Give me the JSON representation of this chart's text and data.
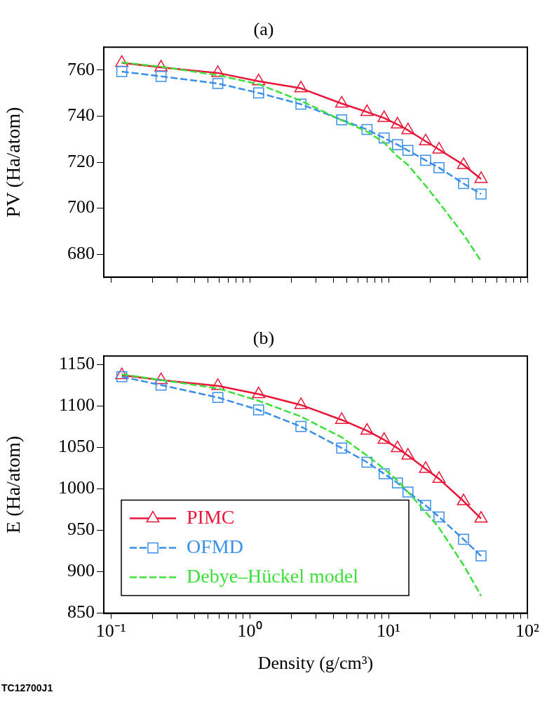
{
  "chart_data": [
    {
      "type": "line",
      "title": "(a)",
      "ylabel": "PV (Ha/atom)",
      "log": "x",
      "grid": false,
      "legend": false,
      "tick_labels": "y",
      "xlim": [
        0.089,
        100
      ],
      "xticks": [
        {
          "value": 0.1,
          "label": null
        },
        {
          "value": 0.2,
          "label": null
        },
        {
          "value": 0.3,
          "label": null
        },
        {
          "value": 0.4,
          "label": null
        },
        {
          "value": 0.5,
          "label": null
        },
        {
          "value": 0.6,
          "label": null
        },
        {
          "value": 0.7,
          "label": null
        },
        {
          "value": 0.8,
          "label": null
        },
        {
          "value": 0.9,
          "label": null
        },
        {
          "value": 1,
          "label": null
        },
        {
          "value": 2,
          "label": null
        },
        {
          "value": 3,
          "label": null
        },
        {
          "value": 4,
          "label": null
        },
        {
          "value": 5,
          "label": null
        },
        {
          "value": 6,
          "label": null
        },
        {
          "value": 7,
          "label": null
        },
        {
          "value": 8,
          "label": null
        },
        {
          "value": 9,
          "label": null
        },
        {
          "value": 10,
          "label": null
        },
        {
          "value": 20,
          "label": null
        },
        {
          "value": 30,
          "label": null
        },
        {
          "value": 40,
          "label": null
        },
        {
          "value": 50,
          "label": null
        },
        {
          "value": 60,
          "label": null
        },
        {
          "value": 70,
          "label": null
        },
        {
          "value": 80,
          "label": null
        },
        {
          "value": 90,
          "label": null
        },
        {
          "value": 100,
          "label": null
        }
      ],
      "ylim": [
        670,
        770
      ],
      "yticks": [
        680,
        700,
        720,
        740,
        760
      ],
      "x": [
        0.12,
        0.23,
        0.59,
        1.16,
        2.34,
        4.6,
        7.0,
        9.3,
        11.6,
        13.8,
        18.5,
        23.1,
        34.7,
        46.4
      ],
      "series": [
        {
          "color": "#e8173a",
          "marker": "triangle",
          "line_style": "solid",
          "values": [
            763.2,
            761.2,
            758.8,
            755.2,
            752.1,
            745.5,
            741.8,
            739.2,
            736.4,
            733.9,
            729.1,
            725.5,
            718.8,
            712.7
          ]
        },
        {
          "color": "#3a8fe8",
          "marker": "square",
          "line_style": "dashed",
          "values": [
            759.4,
            757.3,
            754.2,
            750.1,
            745.2,
            738.4,
            734.2,
            730.5,
            727.6,
            725.1,
            720.8,
            717.6,
            710.7,
            706.1
          ]
        },
        {
          "color": "#3de03a",
          "marker": "none",
          "line_style": "dashed",
          "values": [
            763.4,
            761.5,
            757.8,
            753.9,
            746.7,
            738.2,
            733.3,
            728.5,
            722.5,
            718.8,
            709.7,
            702.4,
            688.5,
            677
          ]
        }
      ]
    },
    {
      "type": "line",
      "title": "(b)",
      "xlabel": "Density (g/cm³)",
      "ylabel": "E (Ha/atom)",
      "log": "x",
      "grid": false,
      "legend": "bottom left",
      "annotations": [
        "TC12700J1"
      ],
      "xlim": [
        0.089,
        100
      ],
      "xticks": [
        {
          "value": 0.1,
          "label": "10⁻¹"
        },
        {
          "value": 0.2,
          "label": null
        },
        {
          "value": 0.3,
          "label": null
        },
        {
          "value": 0.4,
          "label": null
        },
        {
          "value": 0.5,
          "label": null
        },
        {
          "value": 0.6,
          "label": null
        },
        {
          "value": 0.7,
          "label": null
        },
        {
          "value": 0.8,
          "label": null
        },
        {
          "value": 0.9,
          "label": null
        },
        {
          "value": 1,
          "label": "10⁰"
        },
        {
          "value": 2,
          "label": null
        },
        {
          "value": 3,
          "label": null
        },
        {
          "value": 4,
          "label": null
        },
        {
          "value": 5,
          "label": null
        },
        {
          "value": 6,
          "label": null
        },
        {
          "value": 7,
          "label": null
        },
        {
          "value": 8,
          "label": null
        },
        {
          "value": 9,
          "label": null
        },
        {
          "value": 10,
          "label": "10¹"
        },
        {
          "value": 20,
          "label": null
        },
        {
          "value": 30,
          "label": null
        },
        {
          "value": 40,
          "label": null
        },
        {
          "value": 50,
          "label": null
        },
        {
          "value": 60,
          "label": null
        },
        {
          "value": 70,
          "label": null
        },
        {
          "value": 80,
          "label": null
        },
        {
          "value": 90,
          "label": null
        },
        {
          "value": 100,
          "label": "10²"
        }
      ],
      "ylim": [
        850,
        1160
      ],
      "yticks": [
        850,
        900,
        950,
        1000,
        1050,
        1100,
        1150
      ],
      "x": [
        0.12,
        0.23,
        0.59,
        1.16,
        2.34,
        4.6,
        7.0,
        9.3,
        11.6,
        13.8,
        18.5,
        23.1,
        34.7,
        46.4
      ],
      "series": [
        {
          "name": "PIMC",
          "color": "#e8173a",
          "marker": "triangle",
          "line_style": "solid",
          "values": [
            1137,
            1131,
            1124,
            1114,
            1101,
            1083,
            1070,
            1059,
            1049,
            1040,
            1024,
            1012,
            985,
            964
          ]
        },
        {
          "name": "OFMD",
          "color": "#3a8fe8",
          "marker": "square",
          "line_style": "dashed",
          "values": [
            1135,
            1125,
            1110,
            1095,
            1075,
            1049,
            1032,
            1018,
            1007,
            996,
            980,
            966,
            939,
            919
          ]
        },
        {
          "name": "Debye–Hückel model",
          "color": "#3de03a",
          "marker": "none",
          "line_style": "dashed",
          "values": [
            1138,
            1131,
            1121,
            1106,
            1087,
            1062,
            1040,
            1024,
            1010,
            996,
            972,
            953,
            908,
            871
          ]
        }
      ]
    }
  ]
}
